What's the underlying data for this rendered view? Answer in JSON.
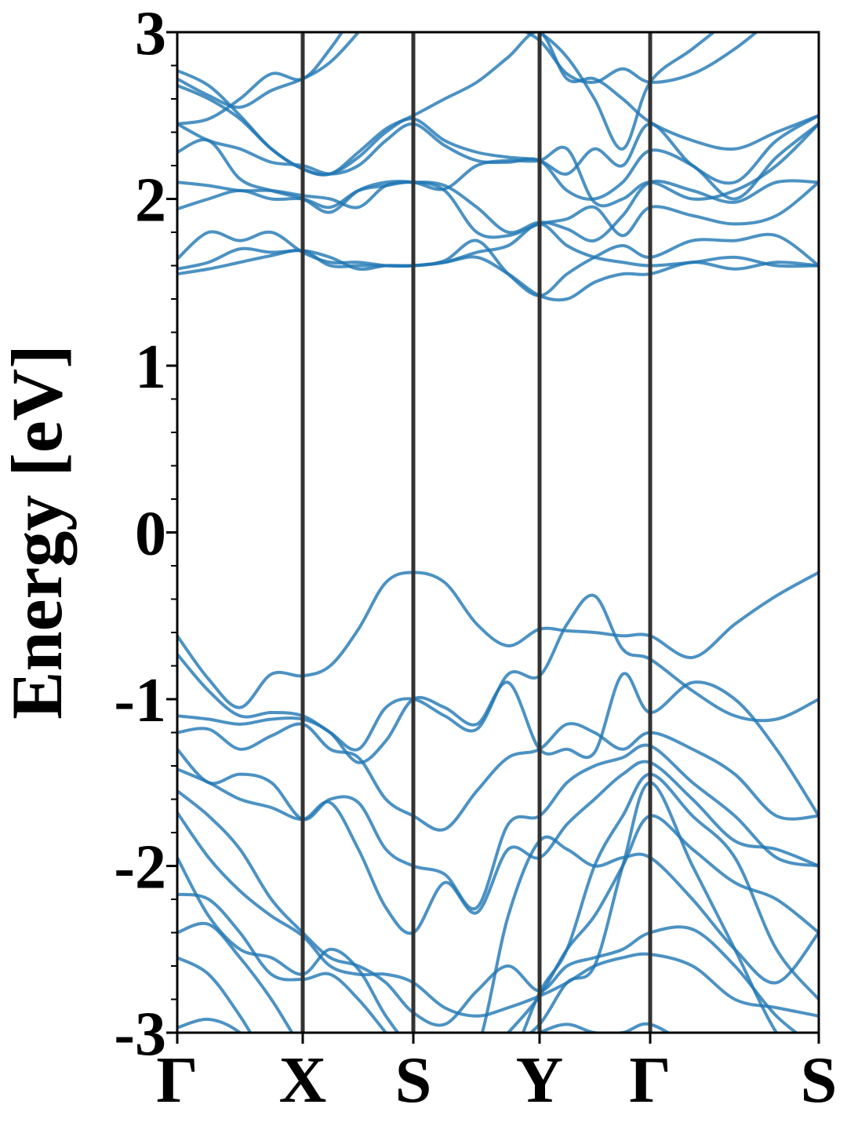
{
  "chart_data": {
    "type": "line",
    "ylabel": "Energy [eV]",
    "ylim": [
      -3,
      3
    ],
    "yticks": [
      -3,
      -2,
      -1,
      0,
      1,
      2,
      3
    ],
    "minor_yticks": [
      -2.8,
      -2.6,
      -2.4,
      -2.2,
      -1.8,
      -1.6,
      -1.4,
      -1.2,
      -0.8,
      -0.6,
      -0.4,
      -0.2,
      0.2,
      0.4,
      0.6,
      0.8,
      1.2,
      1.4,
      1.6,
      1.8,
      2.2,
      2.4,
      2.6,
      2.8
    ],
    "xlim": [
      0,
      1
    ],
    "xticks": [
      {
        "value": 0,
        "label": "Γ"
      },
      {
        "value": 0.1956,
        "label": "X"
      },
      {
        "value": 0.368,
        "label": "S"
      },
      {
        "value": 0.5648,
        "label": "Y"
      },
      {
        "value": 0.7372,
        "label": "Γ"
      },
      {
        "value": 1,
        "label": "S"
      }
    ],
    "x": [
      0,
      0.0489,
      0.0978,
      0.1467,
      0.1956,
      0.2384,
      0.2824,
      0.3252,
      0.368,
      0.4169,
      0.467,
      0.5159,
      0.5648,
      0.6076,
      0.6504,
      0.6944,
      0.7372,
      0.8032,
      0.8692,
      0.934,
      1
    ],
    "series": [
      {
        "color": "#1f77b4",
        "values": [
          1.55,
          1.58,
          1.62,
          1.66,
          1.69,
          1.6,
          1.6,
          1.6,
          1.6,
          1.62,
          1.65,
          1.55,
          1.42,
          1.4,
          1.5,
          1.55,
          1.55,
          1.62,
          1.58,
          1.62,
          1.6
        ]
      },
      {
        "color": "#1f77b4",
        "values": [
          1.58,
          1.62,
          1.7,
          1.68,
          1.69,
          1.65,
          1.58,
          1.6,
          1.6,
          1.62,
          1.68,
          1.72,
          1.85,
          1.72,
          1.65,
          1.62,
          1.6,
          1.62,
          1.65,
          1.6,
          1.6
        ]
      },
      {
        "color": "#1f77b4",
        "values": [
          1.64,
          1.8,
          1.75,
          1.8,
          1.68,
          1.62,
          1.62,
          1.6,
          1.6,
          1.63,
          1.75,
          1.55,
          1.42,
          1.55,
          1.65,
          1.72,
          1.65,
          1.75,
          1.75,
          1.78,
          1.6
        ]
      },
      {
        "color": "#1f77b4",
        "values": [
          1.94,
          2.0,
          2.05,
          2.0,
          2.0,
          1.95,
          2.05,
          2.08,
          2.1,
          2.05,
          1.8,
          1.78,
          1.85,
          1.88,
          1.95,
          1.78,
          1.95,
          1.9,
          1.85,
          1.9,
          2.1
        ]
      },
      {
        "color": "#1f77b4",
        "values": [
          2.1,
          2.08,
          2.05,
          2.05,
          2.02,
          2.0,
          1.95,
          2.08,
          2.1,
          2.08,
          1.95,
          1.8,
          1.86,
          1.82,
          1.75,
          1.9,
          2.1,
          2.05,
          1.98,
          2.1,
          2.1
        ]
      },
      {
        "color": "#1f77b4",
        "values": [
          2.28,
          2.35,
          2.12,
          2.05,
          2.0,
          1.92,
          2.05,
          2.1,
          2.1,
          2.06,
          2.2,
          2.23,
          2.23,
          2.3,
          1.98,
          2.0,
          2.1,
          2.0,
          2.05,
          2.2,
          2.45
        ]
      },
      {
        "color": "#1f77b4",
        "values": [
          2.45,
          2.35,
          2.3,
          2.22,
          2.2,
          2.15,
          2.2,
          2.35,
          2.45,
          2.32,
          2.23,
          2.22,
          2.23,
          2.05,
          2.0,
          2.1,
          2.29,
          2.2,
          2.0,
          2.25,
          2.45
        ]
      },
      {
        "color": "#1f77b4",
        "values": [
          2.68,
          2.6,
          2.48,
          2.3,
          2.18,
          2.15,
          2.25,
          2.4,
          2.48,
          2.35,
          2.28,
          2.25,
          2.23,
          2.15,
          2.3,
          2.2,
          2.45,
          2.2,
          2.1,
          2.35,
          2.5
        ]
      },
      {
        "color": "#1f77b4",
        "values": [
          2.77,
          2.68,
          2.5,
          2.3,
          2.18,
          2.15,
          2.28,
          2.42,
          2.5,
          2.6,
          2.7,
          2.85,
          3.0,
          2.72,
          2.72,
          2.6,
          2.46,
          2.35,
          2.3,
          2.4,
          2.5
        ]
      },
      {
        "color": "#1f77b4",
        "values": [
          2.45,
          2.48,
          2.6,
          2.75,
          2.72,
          2.9,
          3.15,
          3.4,
          3.6,
          3.5,
          3.3,
          3.1,
          3.0,
          2.85,
          2.6,
          2.3,
          2.7,
          2.9,
          3.1,
          3.3,
          3.5
        ]
      },
      {
        "color": "#1f77b4",
        "values": [
          2.72,
          2.62,
          2.55,
          2.65,
          2.72,
          2.82,
          3.0,
          3.2,
          3.4,
          3.3,
          3.15,
          3.05,
          2.95,
          2.75,
          2.7,
          2.78,
          2.7,
          2.75,
          2.9,
          3.1,
          3.3
        ]
      },
      {
        "color": "#1f77b4",
        "values": [
          -0.62,
          -0.88,
          -1.05,
          -0.85,
          -0.86,
          -0.8,
          -0.58,
          -0.3,
          -0.24,
          -0.3,
          -0.55,
          -0.68,
          -0.58,
          -0.59,
          -0.6,
          -0.62,
          -0.62,
          -0.75,
          -0.55,
          -0.38,
          -0.24
        ]
      },
      {
        "color": "#1f77b4",
        "values": [
          -0.73,
          -0.95,
          -1.1,
          -1.08,
          -1.1,
          -1.2,
          -1.3,
          -1.05,
          -1.0,
          -1.1,
          -1.18,
          -0.85,
          -0.86,
          -0.55,
          -0.38,
          -0.7,
          -0.76,
          -0.95,
          -1.1,
          -1.12,
          -1.0
        ]
      },
      {
        "color": "#1f77b4",
        "values": [
          -1.1,
          -1.12,
          -1.15,
          -1.12,
          -1.12,
          -1.2,
          -1.38,
          -1.25,
          -1.0,
          -1.05,
          -1.15,
          -0.9,
          -1.3,
          -1.3,
          -1.32,
          -0.85,
          -1.08,
          -0.9,
          -1.0,
          -1.3,
          -1.7
        ]
      },
      {
        "color": "#1f77b4",
        "values": [
          -1.2,
          -1.18,
          -1.3,
          -1.22,
          -1.15,
          -1.3,
          -1.35,
          -1.6,
          -1.7,
          -1.78,
          -1.55,
          -1.35,
          -1.3,
          -1.15,
          -1.2,
          -1.3,
          -1.2,
          -1.3,
          -1.45,
          -1.7,
          -1.7
        ]
      },
      {
        "color": "#1f77b4",
        "values": [
          -1.3,
          -1.5,
          -1.45,
          -1.5,
          -1.72,
          -1.6,
          -1.62,
          -1.9,
          -2.0,
          -2.05,
          -2.25,
          -1.75,
          -1.7,
          -1.5,
          -1.4,
          -1.35,
          -1.28,
          -1.5,
          -1.7,
          -1.95,
          -2.0
        ]
      },
      {
        "color": "#1f77b4",
        "values": [
          -1.42,
          -1.5,
          -1.6,
          -1.65,
          -1.72,
          -1.62,
          -1.9,
          -2.25,
          -2.4,
          -2.1,
          -2.28,
          -1.9,
          -1.95,
          -1.75,
          -1.6,
          -1.45,
          -1.38,
          -1.6,
          -1.85,
          -1.9,
          -2.0
        ]
      },
      {
        "color": "#1f77b4",
        "values": [
          -1.55,
          -1.7,
          -1.9,
          -2.2,
          -2.4,
          -2.55,
          -2.6,
          -2.7,
          -2.88,
          -2.95,
          -2.75,
          -2.6,
          -2.75,
          -2.6,
          -2.55,
          -2.5,
          -2.4,
          -2.38,
          -2.6,
          -2.9,
          -3.1
        ]
      },
      {
        "color": "#1f77b4",
        "values": [
          -1.68,
          -1.95,
          -2.15,
          -2.3,
          -2.42,
          -2.6,
          -2.65,
          -2.65,
          -2.7,
          -2.85,
          -2.9,
          -2.85,
          -2.78,
          -2.7,
          -2.6,
          -2.55,
          -2.53,
          -2.6,
          -2.8,
          -2.85,
          -2.9
        ]
      },
      {
        "color": "#1f77b4",
        "values": [
          -1.95,
          -2.3,
          -2.5,
          -2.55,
          -2.65,
          -2.5,
          -2.62,
          -2.9,
          -3.1,
          -3.2,
          -3.1,
          -2.3,
          -1.85,
          -1.9,
          -2.0,
          -1.95,
          -1.95,
          -2.2,
          -2.5,
          -2.7,
          -2.4
        ]
      },
      {
        "color": "#1f77b4",
        "values": [
          -2.17,
          -2.2,
          -2.4,
          -2.65,
          -2.68,
          -2.65,
          -2.8,
          -3.0,
          -3.2,
          -3.3,
          -3.2,
          -3.0,
          -2.78,
          -2.5,
          -2.3,
          -2.0,
          -1.7,
          -1.9,
          -2.1,
          -2.2,
          -2.4
        ]
      },
      {
        "color": "#1f77b4",
        "values": [
          -2.4,
          -2.35,
          -2.55,
          -2.8,
          -3.1,
          -3.3,
          -3.4,
          -3.5,
          -3.5,
          -3.4,
          -3.3,
          -3.1,
          -2.95,
          -2.7,
          -2.6,
          -2.0,
          -1.5,
          -2.0,
          -2.5,
          -3.0,
          -3.3
        ]
      },
      {
        "color": "#1f77b4",
        "values": [
          -2.55,
          -2.65,
          -2.9,
          -3.2,
          -3.4,
          -3.5,
          -3.5,
          -3.5,
          -3.5,
          -3.5,
          -3.4,
          -3.2,
          -2.76,
          -2.5,
          -2.0,
          -1.7,
          -1.45,
          -1.7,
          -1.95,
          -2.5,
          -2.8
        ]
      },
      {
        "color": "#1f77b4",
        "values": [
          -2.97,
          -2.92,
          -3.0,
          -3.2,
          -3.3,
          -3.3,
          -3.3,
          -3.4,
          -3.4,
          -3.3,
          -3.2,
          -3.1,
          -3.0,
          -2.95,
          -3.0,
          -3.0,
          -2.95,
          -3.1,
          -3.3,
          -3.5,
          -3.6
        ]
      }
    ]
  }
}
